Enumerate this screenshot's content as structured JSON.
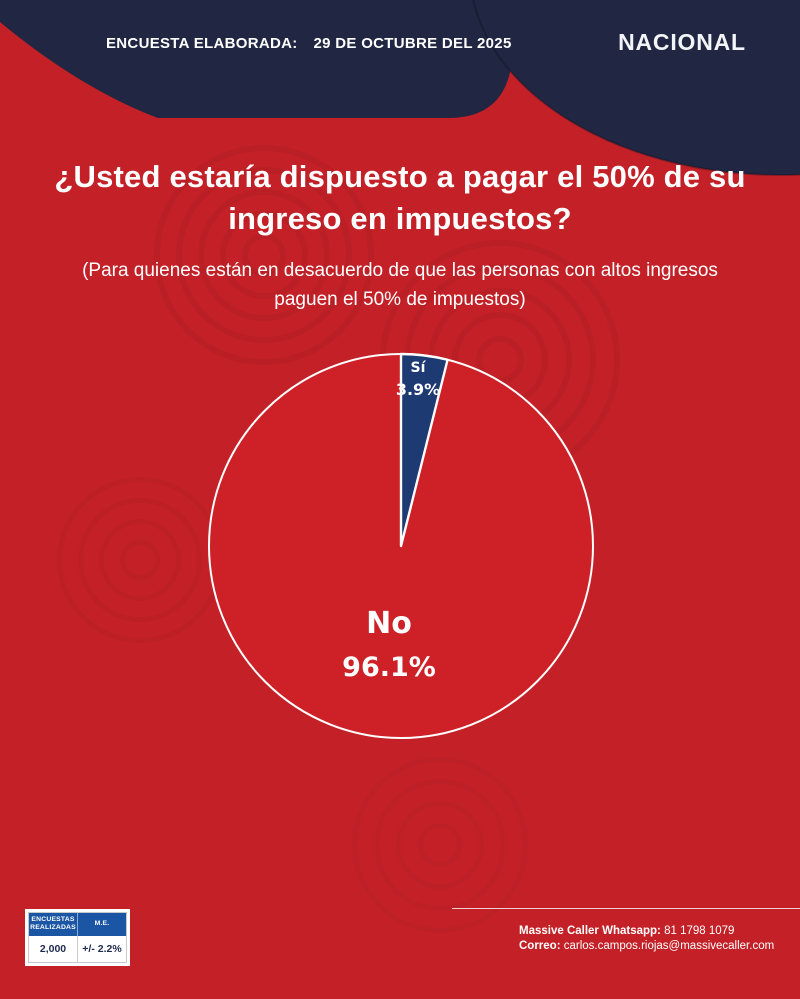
{
  "header": {
    "survey_label": "ENCUESTA ELABORADA:",
    "survey_date": "29 DE OCTUBRE DEL 2025",
    "region": "NACIONAL"
  },
  "question": {
    "title_line1": "¿Usted estaría dispuesto a pagar el 50% de su",
    "title_line2": "ingreso en impuestos?",
    "subtitle_line1": "(Para quienes están en desacuerdo de que las personas con altos ingresos",
    "subtitle_line2": "paguen el 50% de impuestos)"
  },
  "chart_data": {
    "type": "pie",
    "title": "¿Usted estaría dispuesto a pagar el 50% de su ingreso en impuestos?",
    "categories": [
      "Sí",
      "No"
    ],
    "values": [
      3.9,
      96.1
    ],
    "slices": [
      {
        "label": "Sí",
        "value": 3.9,
        "pct_label": "3.9%",
        "color": "#1e3a72"
      },
      {
        "label": "No",
        "value": 96.1,
        "pct_label": "96.1%",
        "color": "#ce2127"
      }
    ],
    "start_angle_deg": 0,
    "direction": "clockwise",
    "stroke_color": "#ffffff",
    "radius_px": 192,
    "legend_position": "none"
  },
  "stats_table": {
    "header_col1": "ENCUESTAS REALIZADAS",
    "header_col2": "M.E.",
    "value_col1": "2,000",
    "value_col2": "+/- 2.2%"
  },
  "footer": {
    "whatsapp_label": "Massive Caller Whatsapp:",
    "whatsapp_number": "81 1798 1079",
    "email_label": "Correo:",
    "email_value": "carlos.campos.riojas@massivecaller.com"
  },
  "colors": {
    "background_red": "#c32127",
    "pie_red": "#ce2127",
    "header_navy": "#212642",
    "pie_navy": "#1e3a72",
    "table_header_blue": "#1a56a4",
    "table_text_navy": "#1d2b4d",
    "white": "#ffffff"
  }
}
